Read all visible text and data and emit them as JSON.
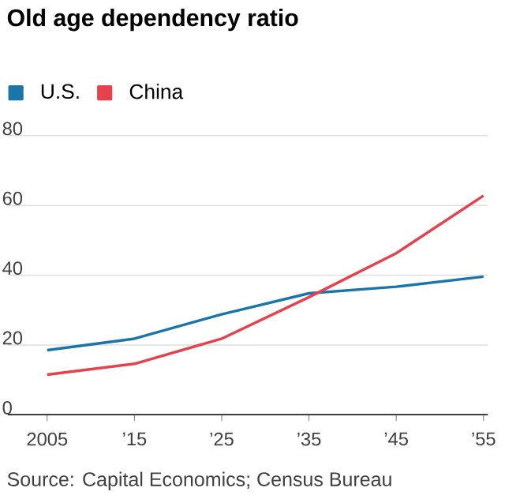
{
  "chart_data": {
    "type": "line",
    "title": "Old age dependency ratio",
    "x": [
      2005,
      2015,
      2025,
      2035,
      2045,
      2055
    ],
    "series": [
      {
        "name": "U.S.",
        "color": "#1a75a8",
        "values": [
          18.5,
          21.8,
          28.8,
          34.8,
          36.7,
          39.6
        ]
      },
      {
        "name": "China",
        "color": "#e5424d",
        "values": [
          11.5,
          14.6,
          21.8,
          33.7,
          46.3,
          62.8
        ]
      }
    ],
    "xlim": [
      2000.5,
      2055.5
    ],
    "ylim": [
      0,
      80
    ],
    "xticks": [
      2005,
      {
        "value": 2015,
        "label": "’15"
      },
      {
        "value": 2025,
        "label": "’25"
      },
      {
        "value": 2035,
        "label": "’35"
      },
      {
        "value": 2045,
        "label": "’45"
      },
      {
        "value": 2055,
        "label": "’55"
      }
    ],
    "yticks": [
      0,
      20,
      40,
      60,
      80
    ],
    "grid": "y",
    "legend": "top left",
    "marker": "none",
    "line_style": "solid",
    "annotations": [
      "Source: Capital Economics; Census Bureau"
    ]
  }
}
